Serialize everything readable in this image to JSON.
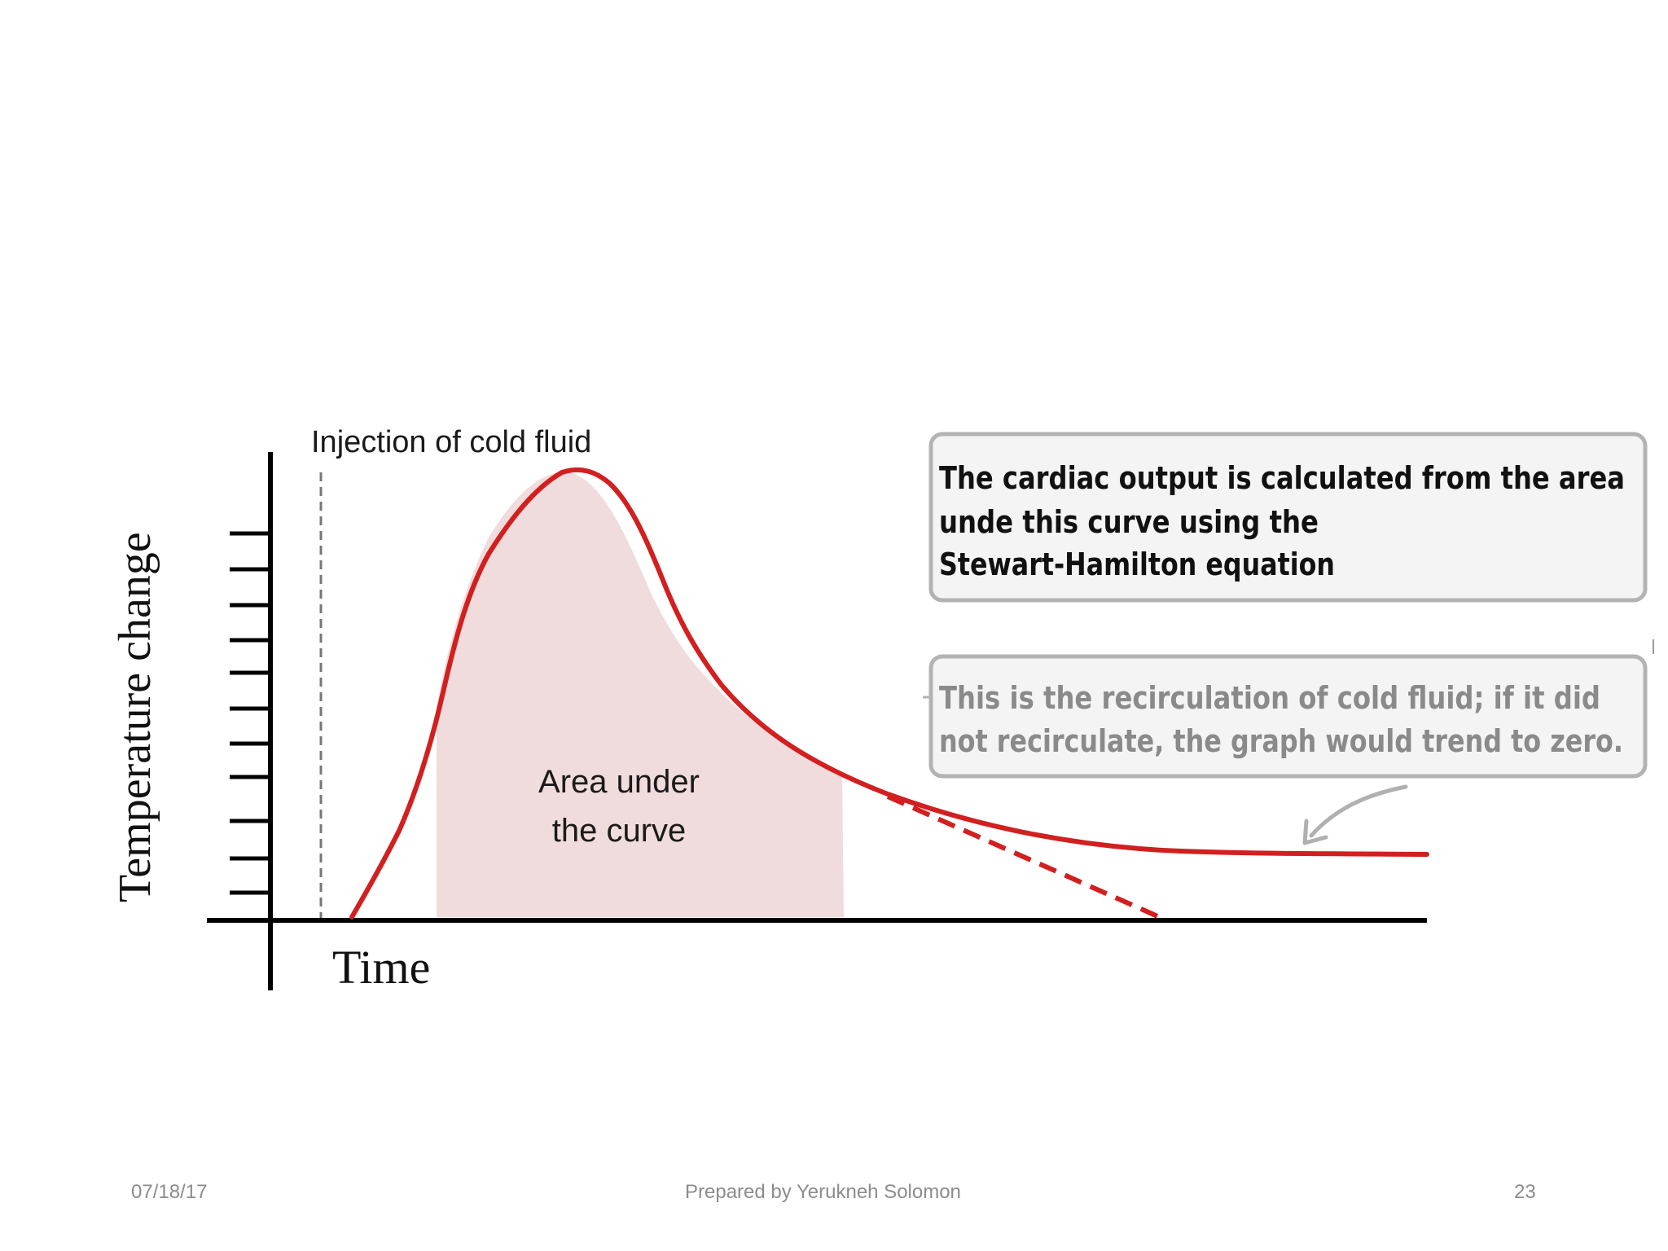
{
  "diagram": {
    "y_axis_label": "Temperature  change",
    "x_axis_label": "Time",
    "injection_label": "Injection of cold fluid",
    "area_label_line1": "Area under",
    "area_label_line2": "the curve",
    "callout_main": {
      "line1": "The cardiac output is calculated from the area",
      "line2": "unde this curve using the",
      "line3": "Stewart-Hamilton  equation"
    },
    "callout_recirculation": {
      "line1": "This is the recirculation  of cold fluid; if it did",
      "line2": "not recirculate, the graph would trend to zero."
    },
    "colors": {
      "curve": "#d21f1f",
      "area_fill": "#f1dcdd",
      "axis": "#000000",
      "injection_marker": "#777777",
      "callout_border": "#b3b3b3",
      "callout_fill": "#f4f4f4",
      "recirculation_text": "#8a8a8a"
    }
  },
  "footer": {
    "date": "07/18/17",
    "author": "Prepared by Yerukneh Solomon",
    "page_number": "23"
  }
}
